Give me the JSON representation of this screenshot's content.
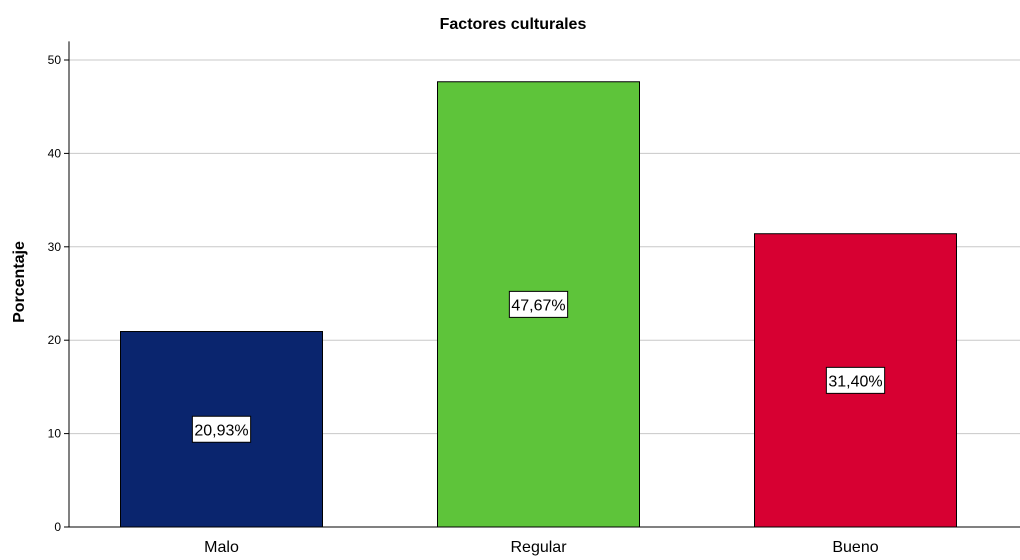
{
  "chart_data": {
    "type": "bar",
    "title": "Factores culturales",
    "ylabel": "Porcentaje",
    "xlabel": "",
    "categories": [
      "Malo",
      "Regular",
      "Bueno"
    ],
    "values": [
      20.93,
      47.67,
      31.4
    ],
    "value_labels": [
      "20,93%",
      "47,67%",
      "31,40%"
    ],
    "colors": [
      "#0a256e",
      "#5ec43a",
      "#d70032"
    ],
    "ylim": [
      0,
      52
    ],
    "yticks": [
      0,
      10,
      20,
      30,
      40,
      50
    ],
    "grid": true,
    "legend": "none"
  }
}
